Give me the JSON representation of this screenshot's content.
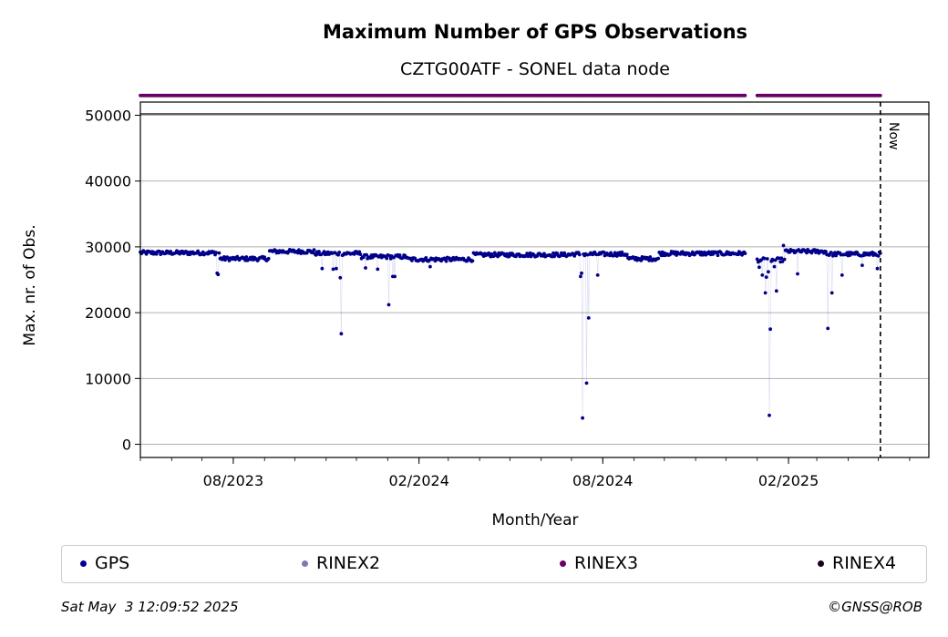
{
  "chart_data": {
    "type": "scatter",
    "title": "Maximum Number of GPS Observations",
    "subtitle": "CZTG00ATF - SONEL data node",
    "xlabel": "Month/Year",
    "ylabel": "Max. nr. of Obs.",
    "xlim": [
      "2023-05-01",
      "2025-06-20"
    ],
    "ylim": [
      -2000,
      52000
    ],
    "yticks": [
      0,
      10000,
      20000,
      30000,
      40000,
      50000
    ],
    "xticks": [
      "2023-08-01",
      "2024-02-01",
      "2024-08-01",
      "2025-02-01"
    ],
    "xtick_labels": [
      "08/2023",
      "02/2024",
      "08/2024",
      "02/2025"
    ],
    "grid": "y",
    "now_date": "2025-05-03",
    "now_label": "Now",
    "baseline": 29000,
    "colors": {
      "GPS": "#00008b",
      "RINEX2": "#7b7bb5",
      "RINEX3": "#680068",
      "RINEX4": "#1c0020"
    },
    "segments": [
      {
        "start": "2023-05-01",
        "end": "2023-07-18",
        "value": 29100
      },
      {
        "start": "2023-07-19",
        "end": "2023-09-05",
        "value": 28200
      },
      {
        "start": "2023-09-06",
        "end": "2023-10-20",
        "value": 29300
      },
      {
        "start": "2023-10-21",
        "end": "2023-12-05",
        "value": 29000
      },
      {
        "start": "2023-12-06",
        "end": "2024-01-20",
        "value": 28500
      },
      {
        "start": "2024-01-21",
        "end": "2024-03-25",
        "value": 28100
      },
      {
        "start": "2024-03-26",
        "end": "2024-06-30",
        "value": 28800
      },
      {
        "start": "2024-07-01",
        "end": "2024-08-25",
        "value": 28900
      },
      {
        "start": "2024-08-26",
        "end": "2024-09-25",
        "value": 28200
      },
      {
        "start": "2024-09-26",
        "end": "2024-12-20",
        "value": 29000
      },
      {
        "start": "2025-01-01",
        "end": "2025-01-28",
        "value": 28000
      },
      {
        "start": "2025-01-29",
        "end": "2025-03-10",
        "value": 29300
      },
      {
        "start": "2025-03-11",
        "end": "2025-05-03",
        "value": 28900
      }
    ],
    "gap": {
      "start": "2024-12-21",
      "end": "2024-12-31"
    },
    "outliers": [
      {
        "x": "2023-07-16",
        "y": 26000
      },
      {
        "x": "2023-07-17",
        "y": 25800
      },
      {
        "x": "2023-10-28",
        "y": 26700
      },
      {
        "x": "2023-11-08",
        "y": 26600
      },
      {
        "x": "2023-11-11",
        "y": 26700
      },
      {
        "x": "2023-11-15",
        "y": 25300
      },
      {
        "x": "2023-11-16",
        "y": 16800
      },
      {
        "x": "2023-12-10",
        "y": 26800
      },
      {
        "x": "2023-12-22",
        "y": 26600
      },
      {
        "x": "2024-01-02",
        "y": 21200
      },
      {
        "x": "2024-01-06",
        "y": 25500
      },
      {
        "x": "2024-01-08",
        "y": 25500
      },
      {
        "x": "2024-02-12",
        "y": 27000
      },
      {
        "x": "2024-07-10",
        "y": 25500
      },
      {
        "x": "2024-07-11",
        "y": 26000
      },
      {
        "x": "2024-07-12",
        "y": 4000
      },
      {
        "x": "2024-07-16",
        "y": 9300
      },
      {
        "x": "2024-07-18",
        "y": 19200
      },
      {
        "x": "2024-07-27",
        "y": 25700
      },
      {
        "x": "2025-01-03",
        "y": 26900
      },
      {
        "x": "2025-01-06",
        "y": 25700
      },
      {
        "x": "2025-01-09",
        "y": 23000
      },
      {
        "x": "2025-01-10",
        "y": 25400
      },
      {
        "x": "2025-01-12",
        "y": 26200
      },
      {
        "x": "2025-01-13",
        "y": 4400
      },
      {
        "x": "2025-01-14",
        "y": 17500
      },
      {
        "x": "2025-01-18",
        "y": 27000
      },
      {
        "x": "2025-01-20",
        "y": 23300
      },
      {
        "x": "2025-01-27",
        "y": 30200
      },
      {
        "x": "2025-02-10",
        "y": 25900
      },
      {
        "x": "2025-03-12",
        "y": 17600
      },
      {
        "x": "2025-03-16",
        "y": 23000
      },
      {
        "x": "2025-03-26",
        "y": 25700
      },
      {
        "x": "2025-04-15",
        "y": 27200
      },
      {
        "x": "2025-04-30",
        "y": 26700
      }
    ],
    "rinex_series": "RINEX3",
    "rinex_level": 53000,
    "legend": [
      "GPS",
      "RINEX2",
      "RINEX3",
      "RINEX4"
    ],
    "legend_position": "bottom"
  },
  "footer": {
    "timestamp": "Sat May  3 12:09:52 2025",
    "credit": "©GNSS@ROB"
  }
}
